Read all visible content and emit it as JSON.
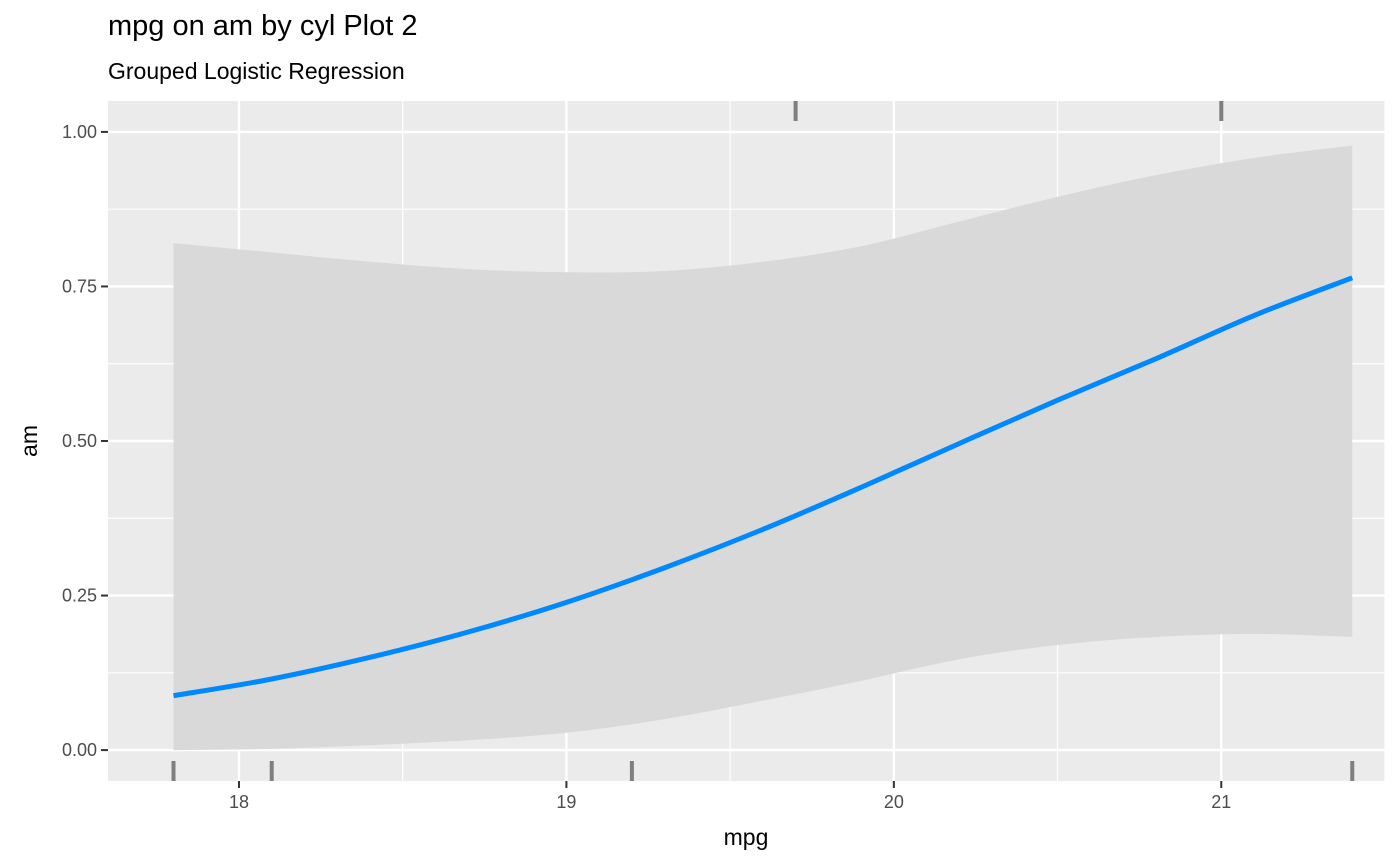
{
  "chart_data": {
    "type": "line",
    "title": "mpg on am by cyl Plot 2",
    "subtitle": "Grouped Logistic Regression",
    "xlabel": "mpg",
    "ylabel": "am",
    "xlim": [
      17.6,
      21.5
    ],
    "ylim": [
      -0.05,
      1.05
    ],
    "x_ticks": [
      18,
      19,
      20,
      21
    ],
    "x_tick_labels": [
      "18",
      "19",
      "20",
      "21"
    ],
    "y_ticks": [
      0,
      0.25,
      0.5,
      0.75,
      1
    ],
    "y_tick_labels": [
      "0.00",
      "0.25",
      "0.50",
      "0.75",
      "1.00"
    ],
    "grid": true,
    "series": [
      {
        "x": [
          17.8,
          18.1,
          18.4,
          18.7,
          19.0,
          19.3,
          19.6,
          19.9,
          20.2,
          20.5,
          20.8,
          21.1,
          21.4
        ],
        "y": [
          0.088,
          0.115,
          0.15,
          0.191,
          0.239,
          0.295,
          0.357,
          0.425,
          0.496,
          0.566,
          0.633,
          0.703,
          0.764
        ],
        "ci_low": [
          0.0,
          0.002,
          0.008,
          0.016,
          0.028,
          0.05,
          0.08,
          0.112,
          0.147,
          0.17,
          0.183,
          0.188,
          0.183
        ],
        "ci_high": [
          0.82,
          0.805,
          0.79,
          0.778,
          0.773,
          0.775,
          0.79,
          0.815,
          0.855,
          0.895,
          0.93,
          0.958,
          0.978
        ],
        "color": "#0088ff",
        "band_color": "#d9d9d9"
      }
    ],
    "rug": {
      "am_0": [
        17.8,
        18.1,
        19.2,
        21.4
      ],
      "am_1": [
        19.7,
        21.0
      ],
      "color": "#7f7f7f"
    },
    "panel_background": "#ebebeb",
    "grid_color": "#ffffff"
  }
}
